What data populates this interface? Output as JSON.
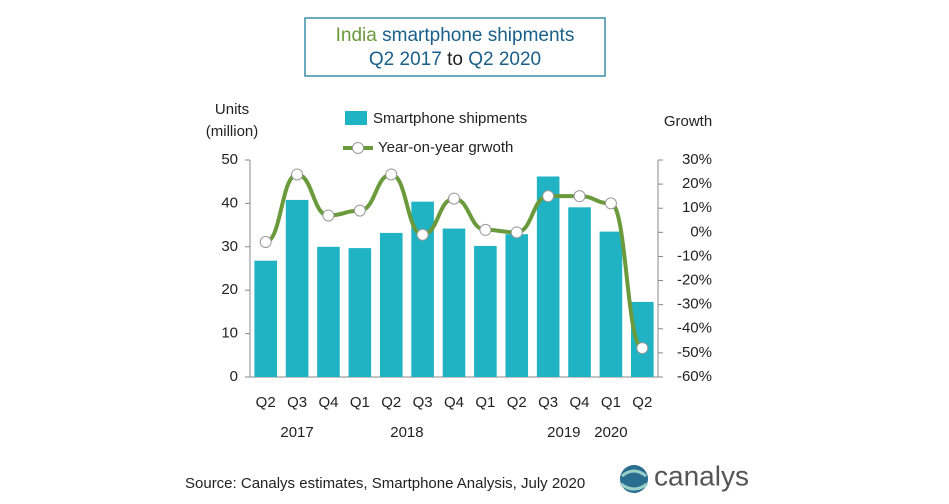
{
  "chart_data": {
    "type": "bar_line",
    "title": {
      "highlight": "India",
      "rest": "smartphone shipments",
      "line2_start": "Q2 2017",
      "line2_mid": "to",
      "line2_end": "Q2 2020"
    },
    "y_axis_title": [
      "Units",
      "(million)"
    ],
    "y2_axis_title": "Growth",
    "categories": [
      "Q2",
      "Q3",
      "Q4",
      "Q1",
      "Q2",
      "Q3",
      "Q4",
      "Q1",
      "Q2",
      "Q3",
      "Q4",
      "Q1",
      "Q2"
    ],
    "years": [
      "2017",
      "2018",
      "2019",
      "2020"
    ],
    "series": [
      {
        "name": "Smartphone shipments",
        "color": "#1fb3c3",
        "values": [
          26.8,
          40.8,
          30.0,
          29.7,
          33.2,
          40.4,
          34.2,
          30.2,
          32.9,
          46.2,
          39.1,
          33.5,
          17.3
        ]
      },
      {
        "name": "Year-on-year grwoth",
        "color": "#6b9a3d",
        "axis": "y2",
        "values": [
          -4,
          24,
          7,
          9,
          24,
          -1,
          14,
          1,
          0,
          15,
          15,
          12,
          -48
        ]
      }
    ],
    "ylim": [
      0,
      50
    ],
    "yticks": [
      0,
      10,
      20,
      30,
      40,
      50
    ],
    "y2lim": [
      -60,
      30
    ],
    "y2ticks": [
      {
        "value": 30,
        "label": "30%"
      },
      {
        "value": 20,
        "label": "20%"
      },
      {
        "value": 10,
        "label": "10%"
      },
      {
        "value": 0,
        "label": "0%"
      },
      {
        "value": -10,
        "label": "-10%"
      },
      {
        "value": -20,
        "label": "-20%"
      },
      {
        "value": -30,
        "label": "-30%"
      },
      {
        "value": -40,
        "label": "-40%"
      },
      {
        "value": -50,
        "label": "-50%"
      },
      {
        "value": -60,
        "label": "-60%"
      }
    ],
    "source": "Source: Canalys estimates, Smartphone Analysis, July 2020",
    "logo": "canalys"
  }
}
